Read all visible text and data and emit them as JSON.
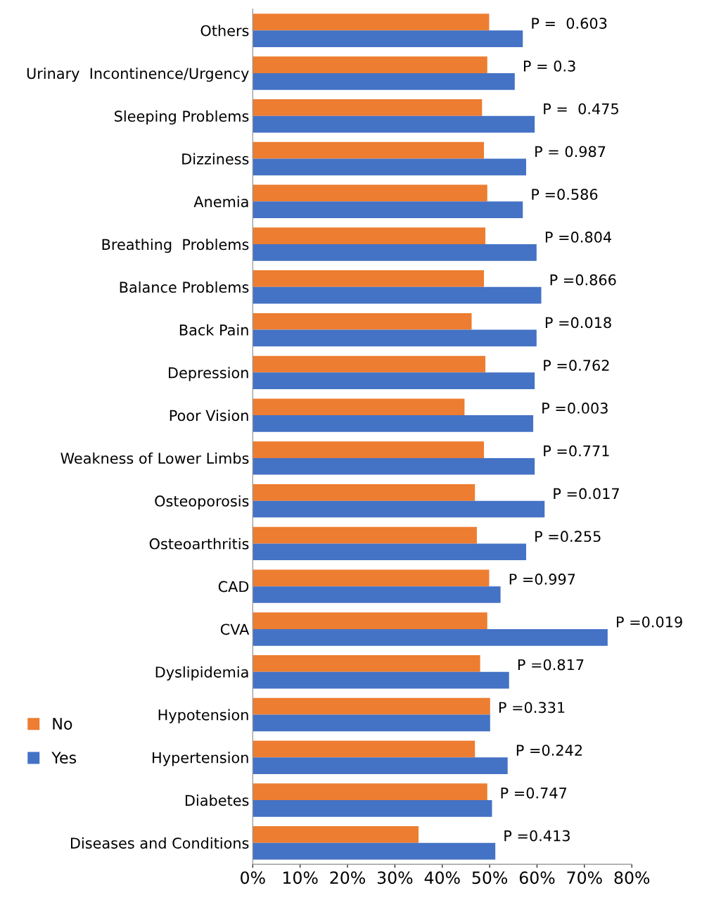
{
  "chart_data": {
    "type": "bar",
    "orientation": "horizontal",
    "categories": [
      "Others",
      "Urinary  Incontinence/Urgency",
      "Sleeping Problems",
      "Dizziness",
      "Anemia",
      "Breathing  Problems",
      "Balance Problems",
      "Back Pain",
      "Depression",
      "Poor Vision",
      "Weakness of Lower Limbs",
      "Osteoporosis",
      "Osteoarthritis",
      "CAD",
      "CVA",
      "Dyslipidemia",
      "Hypotension",
      "Hypertension",
      "Diabetes",
      "Diseases and Conditions"
    ],
    "series": [
      {
        "name": "No",
        "color": "#ed7d31",
        "values": [
          49.9,
          49.5,
          48.4,
          48.8,
          49.5,
          49.1,
          48.8,
          46.2,
          49.1,
          44.7,
          48.8,
          46.9,
          47.3,
          49.9,
          49.5,
          48.0,
          50.1,
          46.9,
          49.5,
          35.0
        ]
      },
      {
        "name": "Yes",
        "color": "#4472c4",
        "values": [
          57.0,
          55.3,
          59.5,
          57.7,
          57.0,
          59.9,
          60.9,
          59.9,
          59.5,
          59.2,
          59.5,
          61.6,
          57.7,
          52.3,
          74.9,
          54.1,
          50.1,
          53.8,
          50.5,
          51.2
        ]
      }
    ],
    "xlim": [
      0,
      80
    ],
    "xticks": [
      {
        "value": 0,
        "label": "0%"
      },
      {
        "value": 10,
        "label": "10%"
      },
      {
        "value": 20,
        "label": "20%"
      },
      {
        "value": 30,
        "label": "30%"
      },
      {
        "value": 40,
        "label": "40%"
      },
      {
        "value": 50,
        "label": "50%"
      },
      {
        "value": 60,
        "label": "60%"
      },
      {
        "value": 70,
        "label": "70%"
      },
      {
        "value": 80,
        "label": "80%"
      }
    ],
    "grid": false,
    "legend": "left",
    "annotations": [
      {
        "text": "P =  0.603",
        "x": 57.0,
        "y": "Others"
      },
      {
        "text": "P = 0.3",
        "x": 55.3,
        "y": "Urinary  Incontinence/Urgency"
      },
      {
        "text": "P =  0.475",
        "x": 59.5,
        "y": "Sleeping Problems"
      },
      {
        "text": "P = 0.987",
        "x": 57.7,
        "y": "Dizziness"
      },
      {
        "text": "P =0.586",
        "x": 57.0,
        "y": "Anemia"
      },
      {
        "text": "P =0.804",
        "x": 59.9,
        "y": "Breathing  Problems"
      },
      {
        "text": "P =0.866",
        "x": 60.9,
        "y": "Balance Problems"
      },
      {
        "text": "P =0.018",
        "x": 59.9,
        "y": "Back Pain"
      },
      {
        "text": "P =0.762",
        "x": 59.5,
        "y": "Depression"
      },
      {
        "text": "P =0.003",
        "x": 59.2,
        "y": "Poor Vision"
      },
      {
        "text": "P =0.771",
        "x": 59.5,
        "y": "Weakness of Lower Limbs"
      },
      {
        "text": "P =0.017",
        "x": 61.6,
        "y": "Osteoporosis"
      },
      {
        "text": "P =0.255",
        "x": 57.7,
        "y": "Osteoarthritis"
      },
      {
        "text": "P =0.997",
        "x": 52.3,
        "y": "CAD"
      },
      {
        "text": "P =0.019",
        "x": 74.9,
        "y": "CVA"
      },
      {
        "text": "P =0.817",
        "x": 54.1,
        "y": "Dyslipidemia"
      },
      {
        "text": "P =0.331",
        "x": 50.1,
        "y": "Hypotension"
      },
      {
        "text": "P =0.242",
        "x": 53.8,
        "y": "Hypertension"
      },
      {
        "text": "P =0.747",
        "x": 50.5,
        "y": "Diabetes"
      },
      {
        "text": "P =0.413",
        "x": 51.2,
        "y": "Diseases and Conditions"
      }
    ]
  }
}
